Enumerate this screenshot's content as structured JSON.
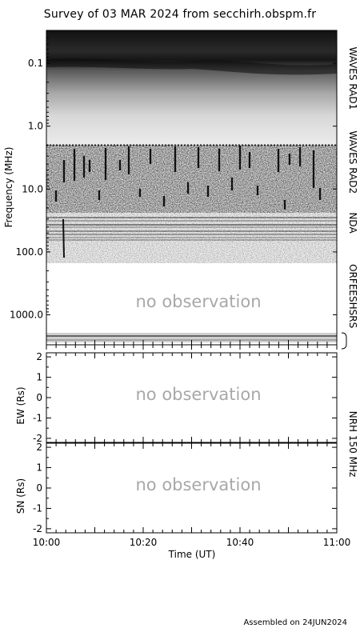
{
  "title": "Survey of 03 MAR 2024 from secchirh.obspm.fr",
  "footer": "Assembled on 24JUN2024",
  "chart_data": [
    {
      "type": "heatmap",
      "panel": "dynamic-spectrum",
      "ylabel": "Frequency (MHz)",
      "y_scale": "log",
      "y_axis_inverted": true,
      "ylim_mhz": [
        0.03,
        3000
      ],
      "ytick_labels": [
        "0.1",
        "1.0",
        "10.0",
        "100.0",
        "1000.0"
      ],
      "ytick_values": [
        0.1,
        1,
        10,
        100,
        1000
      ],
      "xlim": [
        "10:00",
        "11:00"
      ],
      "bands": [
        {
          "name": "WAVES RAD1",
          "range_mhz": [
            0.02,
            1.0
          ],
          "observed": true
        },
        {
          "name": "WAVES RAD2",
          "range_mhz": [
            1.0,
            14.0
          ],
          "observed": true
        },
        {
          "name": "NDA",
          "range_mhz": [
            14.0,
            85.0
          ],
          "observed": true
        },
        {
          "name": "ORFEESHSRS",
          "range_mhz": [
            85.0,
            3000.0
          ],
          "observed": false
        }
      ],
      "annotation": "no observation"
    },
    {
      "type": "line",
      "panel": "nrh-ew",
      "ylabel": "EW (Rs)",
      "ylim": [
        -2.2,
        2.2
      ],
      "yticks": [
        2,
        1,
        0,
        -1,
        -2
      ],
      "xlim": [
        "10:00",
        "11:00"
      ],
      "annotation": "no observation"
    },
    {
      "type": "line",
      "panel": "nrh-sn",
      "ylabel": "SN (Rs)",
      "ylim": [
        -2.2,
        2.2
      ],
      "yticks": [
        2,
        1,
        0,
        -1,
        -2
      ],
      "xlim": [
        "10:00",
        "11:00"
      ],
      "xlabel": "Time (UT)",
      "xtick_labels": [
        "10:00",
        "10:20",
        "10:40",
        "11:00"
      ],
      "annotation": "no observation",
      "right_label": "NRH 150 MHz"
    }
  ]
}
